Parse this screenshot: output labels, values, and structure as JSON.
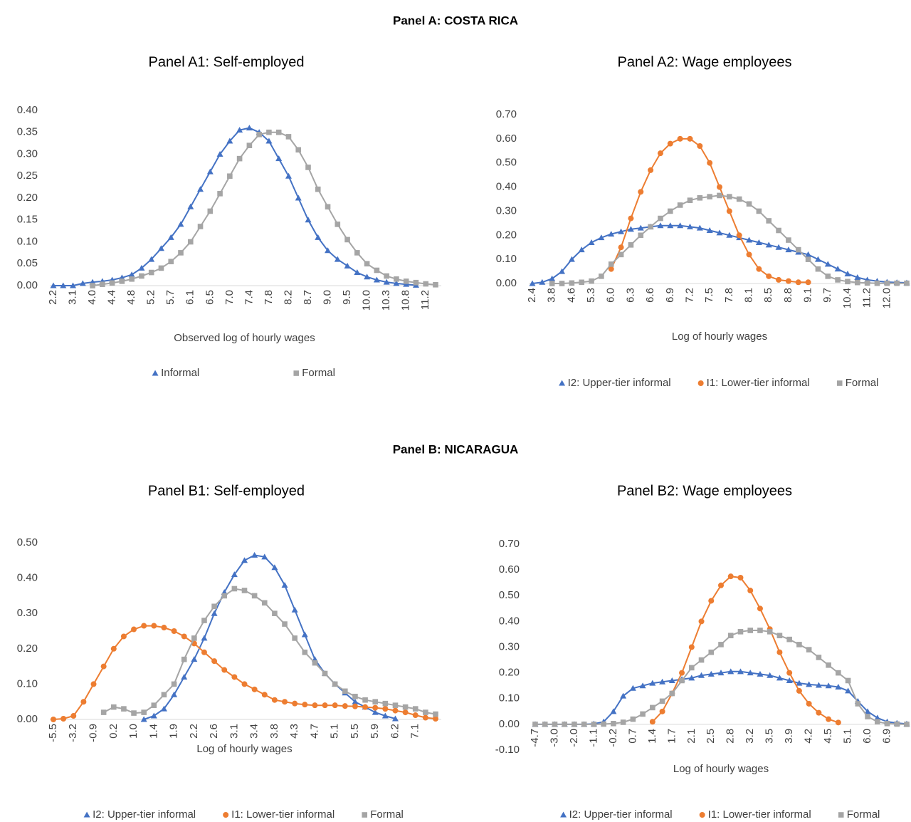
{
  "panel_titles": [
    "Panel A: COSTA RICA",
    "Panel B: NICARAGUA"
  ],
  "chart_data": [
    {
      "type": "line",
      "title": "Panel A1: Self-employed",
      "x_label": "Observed log of hourly wages",
      "categories": [
        "2.2",
        null,
        "3.1",
        null,
        "4.0",
        null,
        "4.4",
        null,
        "4.8",
        null,
        "5.2",
        null,
        "5.7",
        null,
        "6.1",
        null,
        "6.5",
        null,
        "7.0",
        null,
        "7.4",
        null,
        "7.8",
        null,
        "8.2",
        null,
        "8.7",
        null,
        "9.0",
        null,
        "9.5",
        null,
        "10.0",
        null,
        "10.3",
        null,
        "10.8",
        null,
        "11.2",
        null
      ],
      "ylim": [
        0,
        0.4
      ],
      "yticks": [
        {
          "value": 0,
          "label": "0.00"
        },
        {
          "value": 0.05,
          "label": "0.05"
        },
        {
          "value": 0.1,
          "label": "0.10"
        },
        {
          "value": 0.15,
          "label": "0.15"
        },
        {
          "value": 0.2,
          "label": "0.20"
        },
        {
          "value": 0.25,
          "label": "0.25"
        },
        {
          "value": 0.3,
          "label": "0.30"
        },
        {
          "value": 0.35,
          "label": "0.35"
        },
        {
          "value": 0.4,
          "label": "0.40"
        }
      ],
      "legend": "bottom",
      "series": [
        {
          "name": "Informal",
          "color": "#4472c4",
          "marker": "triangle",
          "values": [
            0,
            0,
            0,
            0.005,
            0.008,
            0.01,
            0.013,
            0.018,
            0.025,
            0.04,
            0.06,
            0.085,
            0.11,
            0.14,
            0.18,
            0.22,
            0.26,
            0.3,
            0.33,
            0.355,
            0.36,
            0.35,
            0.33,
            0.29,
            0.25,
            0.2,
            0.15,
            0.11,
            0.08,
            0.06,
            0.045,
            0.03,
            0.02,
            0.013,
            0.008,
            0.005,
            0.003,
            0.001,
            null,
            null
          ]
        },
        {
          "name": "Formal",
          "color": "#a5a5a5",
          "marker": "square",
          "values": [
            null,
            null,
            null,
            null,
            0,
            0.003,
            0.006,
            0.01,
            0.015,
            0.022,
            0.03,
            0.04,
            0.055,
            0.075,
            0.1,
            0.135,
            0.17,
            0.21,
            0.25,
            0.29,
            0.32,
            0.345,
            0.35,
            0.35,
            0.34,
            0.31,
            0.27,
            0.22,
            0.18,
            0.14,
            0.105,
            0.075,
            0.05,
            0.035,
            0.022,
            0.015,
            0.01,
            0.007,
            0.004,
            0.002
          ]
        }
      ]
    },
    {
      "type": "line",
      "title": "Panel A2: Wage employees",
      "x_label": "Log of hourly wages",
      "categories": [
        "2.4",
        null,
        "3.8",
        null,
        "4.6",
        null,
        "5.3",
        null,
        "6.0",
        null,
        "6.3",
        null,
        "6.6",
        null,
        "6.9",
        null,
        "7.2",
        null,
        "7.5",
        null,
        "7.8",
        null,
        "8.1",
        null,
        "8.5",
        null,
        "8.8",
        null,
        "9.1",
        null,
        "9.7",
        null,
        "10.4",
        null,
        "11.2",
        null,
        "12.0",
        null,
        null
      ],
      "ylim": [
        0,
        0.7
      ],
      "yticks": [
        {
          "value": 0,
          "label": "0.00"
        },
        {
          "value": 0.1,
          "label": "0.10"
        },
        {
          "value": 0.2,
          "label": "0.20"
        },
        {
          "value": 0.3,
          "label": "0.30"
        },
        {
          "value": 0.4,
          "label": "0.40"
        },
        {
          "value": 0.5,
          "label": "0.50"
        },
        {
          "value": 0.6,
          "label": "0.60"
        },
        {
          "value": 0.7,
          "label": "0.70"
        }
      ],
      "legend": "bottom",
      "series": [
        {
          "name": "I2: Upper-tier informal",
          "color": "#4472c4",
          "marker": "triangle",
          "values": [
            0,
            0.005,
            0.02,
            0.05,
            0.1,
            0.14,
            0.17,
            0.19,
            0.205,
            0.215,
            0.225,
            0.23,
            0.235,
            0.24,
            0.24,
            0.24,
            0.235,
            0.23,
            0.22,
            0.21,
            0.2,
            0.19,
            0.18,
            0.17,
            0.16,
            0.15,
            0.14,
            0.13,
            0.12,
            0.1,
            0.08,
            0.06,
            0.04,
            0.025,
            0.015,
            0.01,
            0.006,
            0.004,
            0.003
          ]
        },
        {
          "name": "I1: Lower-tier informal",
          "color": "#ed7d31",
          "marker": "circle",
          "values": [
            null,
            null,
            null,
            null,
            null,
            null,
            null,
            null,
            0.06,
            0.15,
            0.27,
            0.38,
            0.47,
            0.54,
            0.58,
            0.6,
            0.6,
            0.57,
            0.5,
            0.4,
            0.3,
            0.2,
            0.12,
            0.06,
            0.03,
            0.015,
            0.01,
            0.005,
            0.005,
            null,
            null,
            null,
            null,
            null,
            null,
            null,
            null,
            null,
            null
          ]
        },
        {
          "name": "Formal",
          "color": "#a5a5a5",
          "marker": "square",
          "values": [
            null,
            null,
            0,
            0,
            0.002,
            0.005,
            0.01,
            0.03,
            0.08,
            0.12,
            0.16,
            0.2,
            0.235,
            0.27,
            0.3,
            0.325,
            0.345,
            0.355,
            0.36,
            0.365,
            0.36,
            0.35,
            0.33,
            0.3,
            0.26,
            0.22,
            0.18,
            0.14,
            0.1,
            0.06,
            0.03,
            0.015,
            0.008,
            0.004,
            0.002,
            0.001,
            0.001,
            0.001,
            0.001
          ]
        }
      ]
    },
    {
      "type": "line",
      "title": "Panel B1: Self-employed",
      "x_label": "Log of hourly wages",
      "categories": [
        "-5.5",
        null,
        "-3.2",
        null,
        "-0.9",
        null,
        "0.2",
        null,
        "1.0",
        null,
        "1.4",
        null,
        "1.9",
        null,
        "2.2",
        null,
        "2.6",
        null,
        "3.1",
        null,
        "3.4",
        null,
        "3.8",
        null,
        "4.3",
        null,
        "4.7",
        null,
        "5.1",
        null,
        "5.5",
        null,
        "5.9",
        null,
        "6.2",
        null,
        "7.1",
        null,
        null
      ],
      "ylim": [
        0,
        0.5
      ],
      "yticks": [
        {
          "value": 0,
          "label": "0.00"
        },
        {
          "value": 0.1,
          "label": "0.10"
        },
        {
          "value": 0.2,
          "label": "0.20"
        },
        {
          "value": 0.3,
          "label": "0.30"
        },
        {
          "value": 0.4,
          "label": "0.40"
        },
        {
          "value": 0.5,
          "label": "0.50"
        }
      ],
      "legend": "bottom",
      "series": [
        {
          "name": "I2: Upper-tier informal",
          "color": "#4472c4",
          "marker": "triangle",
          "values": [
            null,
            null,
            null,
            null,
            null,
            null,
            null,
            null,
            null,
            0,
            0.01,
            0.03,
            0.07,
            0.12,
            0.17,
            0.23,
            0.3,
            0.36,
            0.41,
            0.45,
            0.465,
            0.46,
            0.43,
            0.38,
            0.31,
            0.24,
            0.17,
            0.13,
            0.1,
            0.075,
            0.05,
            0.035,
            0.02,
            0.01,
            0.002,
            null,
            null,
            null,
            null
          ]
        },
        {
          "name": "I1: Lower-tier informal",
          "color": "#ed7d31",
          "marker": "circle",
          "values": [
            0,
            0.002,
            0.01,
            0.05,
            0.1,
            0.15,
            0.2,
            0.235,
            0.255,
            0.265,
            0.265,
            0.26,
            0.25,
            0.235,
            0.215,
            0.19,
            0.165,
            0.14,
            0.12,
            0.1,
            0.085,
            0.07,
            0.055,
            0.05,
            0.045,
            0.042,
            0.04,
            0.04,
            0.04,
            0.038,
            0.037,
            0.035,
            0.033,
            0.03,
            0.025,
            0.02,
            0.012,
            0.005,
            0.002
          ]
        },
        {
          "name": "Formal",
          "color": "#a5a5a5",
          "marker": "square",
          "values": [
            null,
            null,
            null,
            null,
            null,
            0.02,
            0.035,
            0.03,
            0.018,
            0.02,
            0.04,
            0.07,
            0.1,
            0.17,
            0.23,
            0.28,
            0.32,
            0.35,
            0.37,
            0.365,
            0.35,
            0.33,
            0.3,
            0.27,
            0.23,
            0.19,
            0.16,
            0.13,
            0.1,
            0.08,
            0.065,
            0.055,
            0.05,
            0.045,
            0.04,
            0.035,
            0.03,
            0.02,
            0.015
          ]
        }
      ]
    },
    {
      "type": "line",
      "title": "Panel B2: Wage employees",
      "x_label": "Log of hourly wages",
      "categories": [
        "-4.7",
        null,
        "-3.0",
        null,
        "-2.0",
        null,
        "-1.1",
        null,
        "-0.2",
        null,
        "0.7",
        null,
        "1.4",
        null,
        "1.7",
        null,
        "2.1",
        null,
        "2.5",
        null,
        "2.8",
        null,
        "3.2",
        null,
        "3.5",
        null,
        "3.9",
        null,
        "4.2",
        null,
        "4.5",
        null,
        "5.1",
        null,
        "6.0",
        null,
        "6.9",
        null,
        null
      ],
      "ylim": [
        -0.1,
        0.7
      ],
      "yticks": [
        {
          "value": -0.1,
          "label": "-0.10"
        },
        {
          "value": 0,
          "label": "0.00"
        },
        {
          "value": 0.1,
          "label": "0.10"
        },
        {
          "value": 0.2,
          "label": "0.20"
        },
        {
          "value": 0.3,
          "label": "0.30"
        },
        {
          "value": 0.4,
          "label": "0.40"
        },
        {
          "value": 0.5,
          "label": "0.50"
        },
        {
          "value": 0.6,
          "label": "0.60"
        },
        {
          "value": 0.7,
          "label": "0.70"
        }
      ],
      "legend": "bottom",
      "series": [
        {
          "name": "I2: Upper-tier informal",
          "color": "#4472c4",
          "marker": "triangle",
          "values": [
            0,
            0,
            0,
            0,
            0,
            0,
            0.002,
            0.01,
            0.05,
            0.11,
            0.14,
            0.15,
            0.16,
            0.165,
            0.17,
            0.175,
            0.18,
            0.19,
            0.195,
            0.2,
            0.205,
            0.205,
            0.2,
            0.195,
            0.19,
            0.18,
            0.17,
            0.16,
            0.155,
            0.152,
            0.15,
            0.145,
            0.13,
            0.09,
            0.05,
            0.025,
            0.01,
            0.005,
            0.002
          ]
        },
        {
          "name": "I1: Lower-tier informal",
          "color": "#ed7d31",
          "marker": "circle",
          "values": [
            null,
            null,
            null,
            null,
            null,
            null,
            null,
            null,
            null,
            null,
            null,
            null,
            0.01,
            0.05,
            0.12,
            0.2,
            0.3,
            0.4,
            0.48,
            0.54,
            0.575,
            0.57,
            0.52,
            0.45,
            0.37,
            0.28,
            0.2,
            0.13,
            0.08,
            0.045,
            0.02,
            0.007,
            null,
            null,
            null,
            null,
            null,
            null,
            null
          ]
        },
        {
          "name": "Formal",
          "color": "#a5a5a5",
          "marker": "square",
          "values": [
            0,
            0,
            0,
            0,
            0,
            0,
            0,
            0.001,
            0.003,
            0.008,
            0.02,
            0.04,
            0.065,
            0.09,
            0.12,
            0.17,
            0.22,
            0.25,
            0.28,
            0.31,
            0.345,
            0.36,
            0.365,
            0.365,
            0.36,
            0.345,
            0.33,
            0.31,
            0.29,
            0.26,
            0.23,
            0.2,
            0.17,
            0.08,
            0.03,
            0.01,
            0.003,
            0.001,
            0
          ]
        }
      ]
    }
  ]
}
